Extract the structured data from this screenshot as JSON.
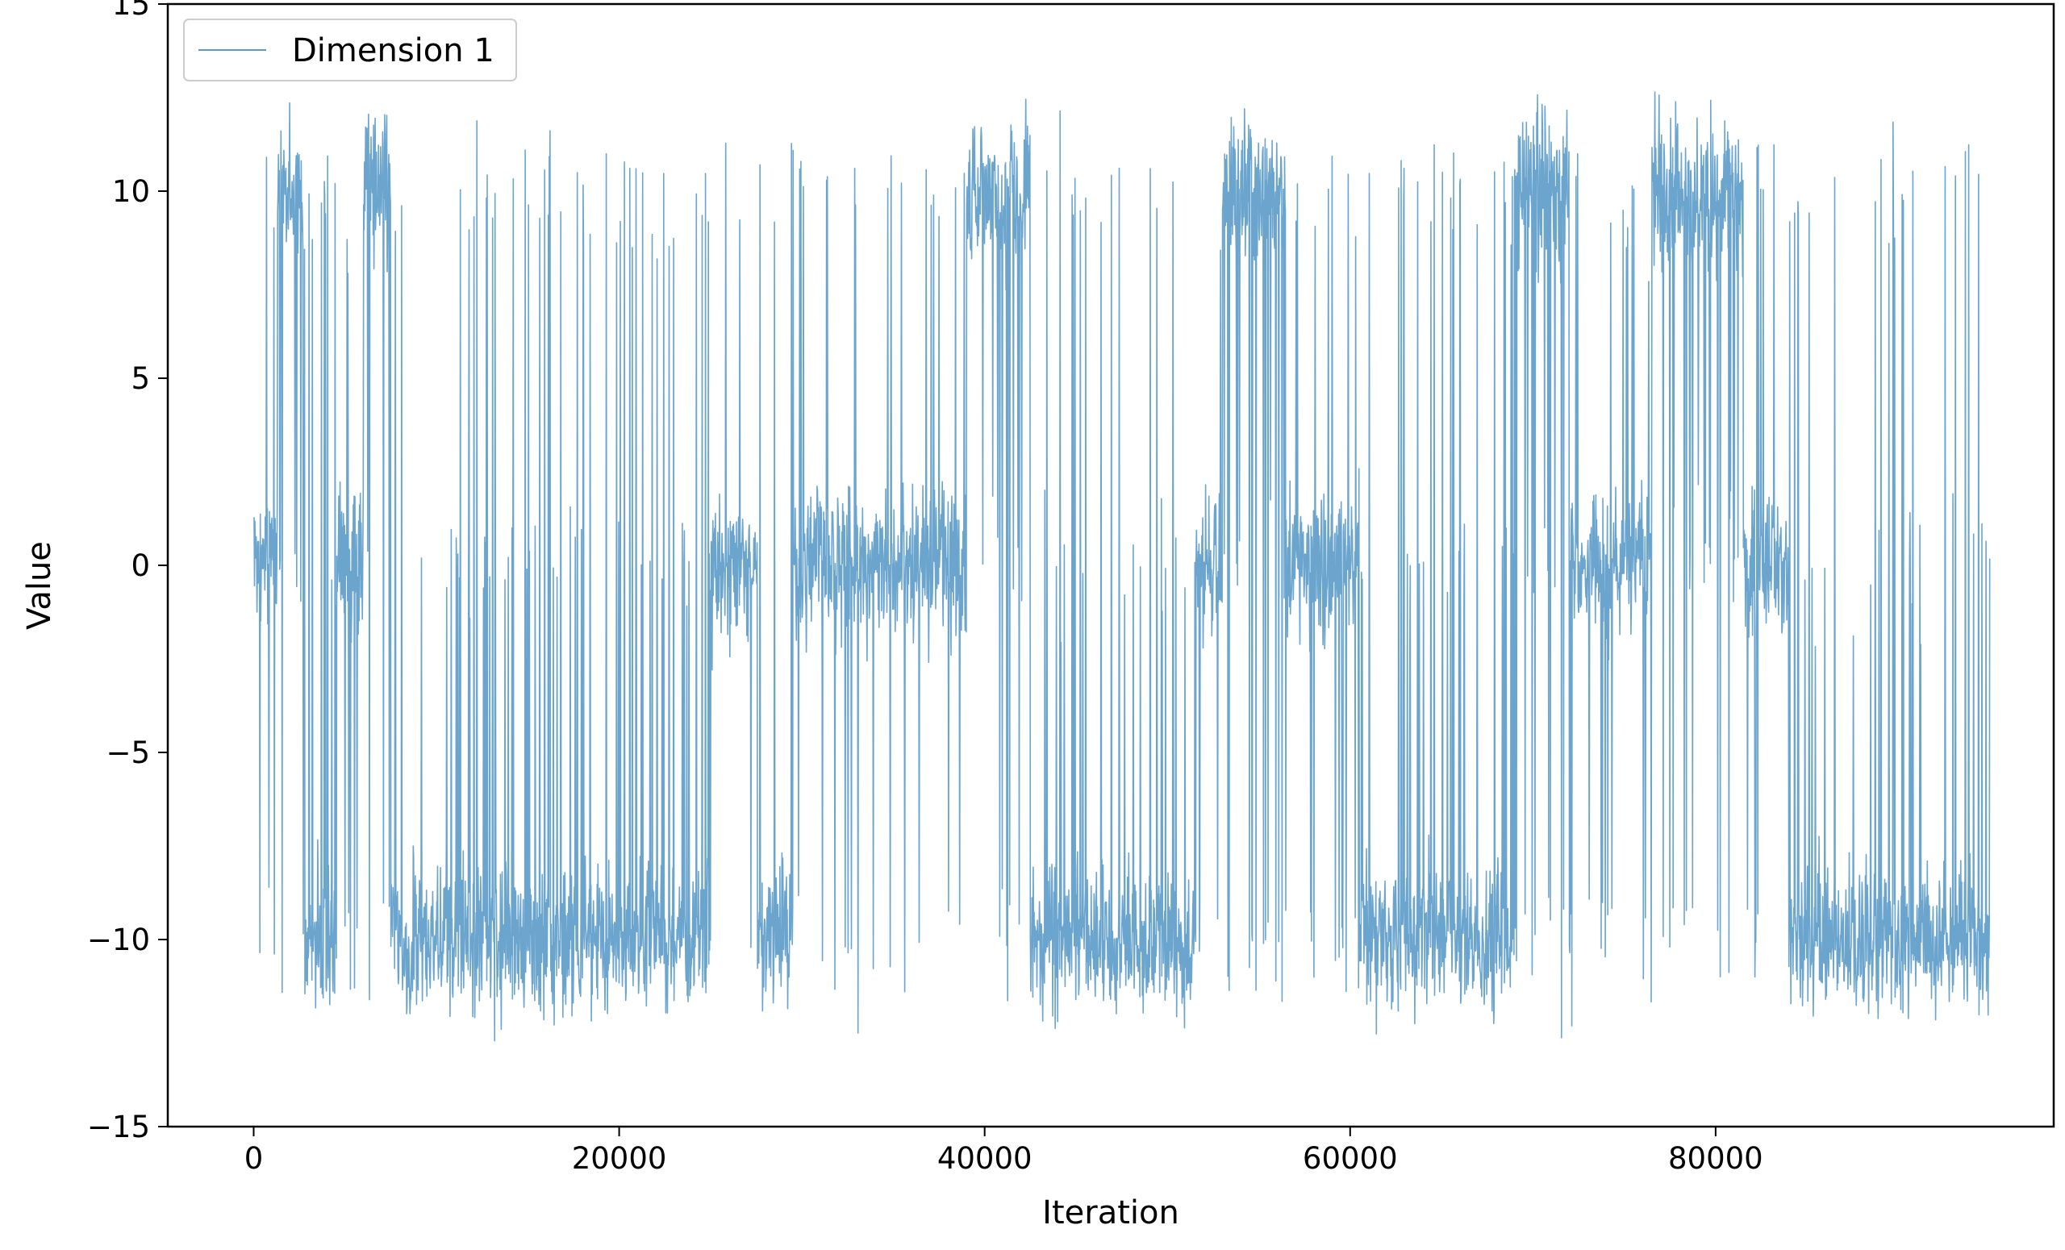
{
  "chart_data": {
    "type": "line",
    "title": "",
    "xlabel": "Iteration",
    "ylabel": "Value",
    "xlim": [
      -4700,
      98500
    ],
    "ylim": [
      -15,
      15
    ],
    "x_ticks": [
      0,
      20000,
      40000,
      60000,
      80000
    ],
    "x_tick_labels": [
      "0",
      "20000",
      "40000",
      "60000",
      "80000"
    ],
    "y_ticks": [
      -15,
      -10,
      -5,
      0,
      5,
      10,
      15
    ],
    "y_tick_labels": [
      "−15",
      "−10",
      "−5",
      "0",
      "5",
      "10",
      "15"
    ],
    "grid": false,
    "legend": {
      "position": "top-left",
      "entries": [
        "Dimension 1"
      ]
    },
    "series": [
      {
        "name": "Dimension 1",
        "color": "#5b9bc9",
        "n_points": 95000,
        "x_range": [
          0,
          95000
        ],
        "modes": [
          -10,
          0,
          10
        ],
        "regimes": [
          {
            "start": 0,
            "end": 1300,
            "level": 0
          },
          {
            "start": 1300,
            "end": 2700,
            "level": 10
          },
          {
            "start": 2700,
            "end": 4500,
            "level": -10
          },
          {
            "start": 4500,
            "end": 6000,
            "level": 0
          },
          {
            "start": 6000,
            "end": 7500,
            "level": 10
          },
          {
            "start": 7500,
            "end": 25000,
            "level": -10
          },
          {
            "start": 25000,
            "end": 27500,
            "level": 0
          },
          {
            "start": 27500,
            "end": 29500,
            "level": -10
          },
          {
            "start": 29500,
            "end": 39000,
            "level": 0
          },
          {
            "start": 39000,
            "end": 42500,
            "level": 10
          },
          {
            "start": 42500,
            "end": 51500,
            "level": -10
          },
          {
            "start": 51500,
            "end": 53000,
            "level": 0
          },
          {
            "start": 53000,
            "end": 56500,
            "level": 10
          },
          {
            "start": 56500,
            "end": 60500,
            "level": 0
          },
          {
            "start": 60500,
            "end": 69000,
            "level": -10
          },
          {
            "start": 69000,
            "end": 72000,
            "level": 10
          },
          {
            "start": 72000,
            "end": 76500,
            "level": 0
          },
          {
            "start": 76500,
            "end": 81500,
            "level": 10
          },
          {
            "start": 81500,
            "end": 84000,
            "level": 0
          },
          {
            "start": 84000,
            "end": 95000,
            "level": -10
          }
        ]
      }
    ]
  }
}
